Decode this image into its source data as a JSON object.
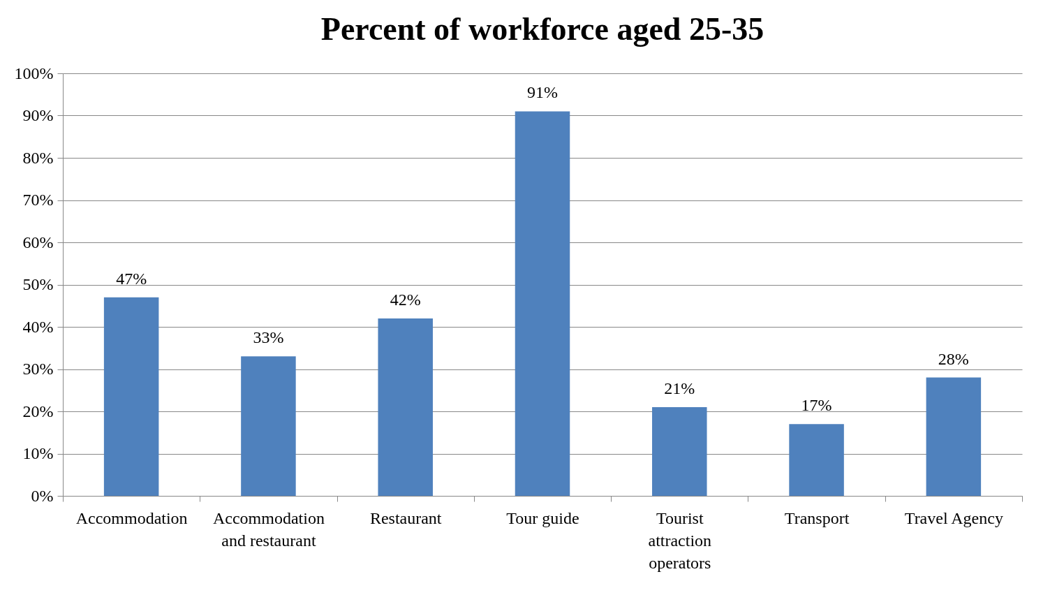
{
  "chart_data": {
    "type": "bar",
    "title": "Percent of workforce aged 25-35",
    "categories": [
      "Accommodation",
      "Accommodation and restaurant",
      "Restaurant",
      "Tour guide",
      "Tourist attraction operators",
      "Transport",
      "Travel Agency"
    ],
    "values": [
      47,
      33,
      42,
      91,
      21,
      17,
      28
    ],
    "value_labels": [
      "47%",
      "33%",
      "42%",
      "91%",
      "21%",
      "17%",
      "28%"
    ],
    "color": "#4f81bd",
    "ylim": [
      0,
      100
    ],
    "yticks": [
      {
        "value": 0,
        "label": "0%"
      },
      {
        "value": 10,
        "label": "10%"
      },
      {
        "value": 20,
        "label": "20%"
      },
      {
        "value": 30,
        "label": "30%"
      },
      {
        "value": 40,
        "label": "40%"
      },
      {
        "value": 50,
        "label": "50%"
      },
      {
        "value": 60,
        "label": "60%"
      },
      {
        "value": 70,
        "label": "70%"
      },
      {
        "value": 80,
        "label": "80%"
      },
      {
        "value": 90,
        "label": "90%"
      },
      {
        "value": 100,
        "label": "100%"
      }
    ],
    "grid": "y"
  }
}
